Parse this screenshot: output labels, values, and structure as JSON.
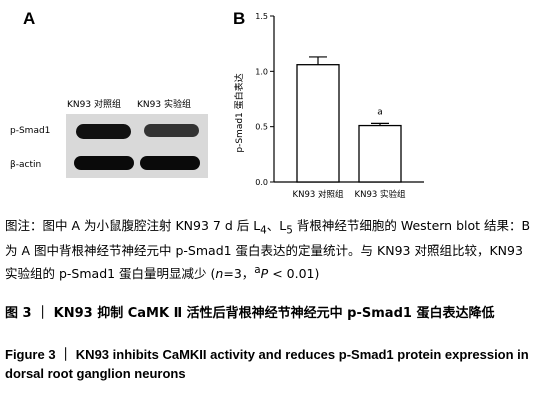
{
  "panel_a": {
    "letter": "A",
    "group_labels": [
      "KN93 对照组",
      "KN93 实验组"
    ],
    "blots": [
      {
        "name": "p-Smad1"
      },
      {
        "name": "β-actin"
      }
    ]
  },
  "chart_data": {
    "type": "bar",
    "letter": "B",
    "categories": [
      "KN93 对照组",
      "KN93 实验组"
    ],
    "values": [
      1.06,
      0.51
    ],
    "errors": [
      0.07,
      0.02
    ],
    "ylabel": "p-Smad1 蛋白表达",
    "yticks": [
      "0.0",
      "0.5",
      "1.0",
      "1.5"
    ],
    "ylim": [
      0,
      1.5
    ],
    "annotations": [
      "",
      "a"
    ]
  },
  "caption": {
    "text_html": "图注：图中 A 为小鼠腹腔注射 KN93 7 d 后 L<sub>4</sub>、L<sub>5</sub> 背根神经节细胞的 Western blot 结果：B 为 A 图中背根神经节神经元中 p-Smad1 蛋白表达的定量统计。与 KN93 对照组比较，KN93 实验组的 p-Smad1 蛋白量明显减少 (<i>n</i>=3，<sup>a</sup><i>P</i> &lt; 0.01)",
    "title_zh": "图 3 ｜ KN93 抑制 CaMK Ⅱ 活性后背根神经节神经元中 p-Smad1 蛋白表达降低",
    "title_en": "Figure 3 ｜ KN93 inhibits CaMKII activity and reduces p-Smad1 protein expression in dorsal root ganglion neurons"
  }
}
